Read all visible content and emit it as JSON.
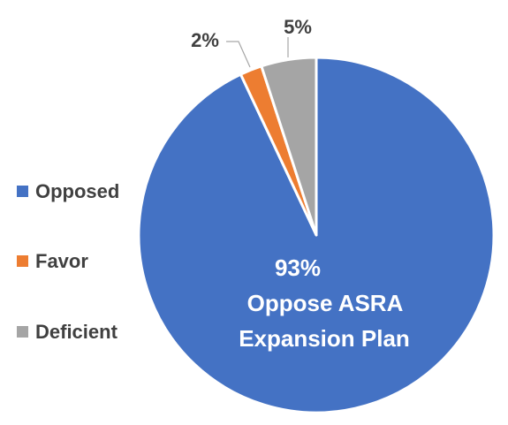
{
  "chart_data": {
    "type": "pie",
    "title": "",
    "series": [
      {
        "name": "Opposed",
        "value": 93,
        "label": "93%",
        "color": "#4472C4"
      },
      {
        "name": "Favor",
        "value": 2,
        "label": "2%",
        "color": "#ED7D31"
      },
      {
        "name": "Deficient",
        "value": 5,
        "label": "5%",
        "color": "#A5A5A5"
      }
    ],
    "annotations": {
      "center_lines": [
        "93%",
        "Oppose ASRA",
        "Expansion Plan"
      ]
    },
    "legend": {
      "position": "left",
      "items": [
        "Opposed",
        "Favor",
        "Deficient"
      ]
    },
    "start_angle": "top",
    "direction": "clockwise"
  }
}
